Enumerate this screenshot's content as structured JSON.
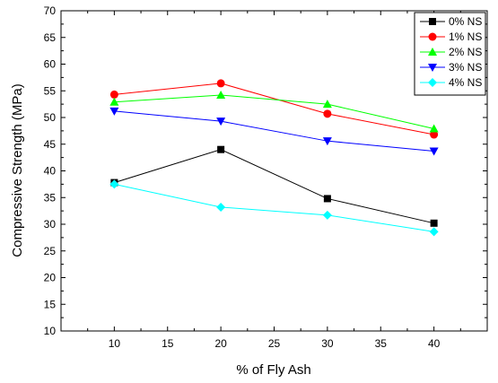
{
  "chart_data": {
    "type": "line",
    "title": "",
    "xlabel": "% of Fly Ash",
    "ylabel": "Compressive Strength (MPa)",
    "xlim": [
      5,
      45
    ],
    "ylim": [
      10,
      70
    ],
    "x_ticks": [
      10,
      15,
      20,
      25,
      30,
      35,
      40
    ],
    "y_ticks": [
      10,
      15,
      20,
      25,
      30,
      35,
      40,
      45,
      50,
      55,
      60,
      65,
      70
    ],
    "x": [
      10,
      20,
      30,
      40
    ],
    "grid": false,
    "legend_position": "top-right",
    "series": [
      {
        "name": "0% NS",
        "values": [
          37.8,
          44.0,
          34.8,
          30.2
        ],
        "color": "#000000",
        "marker": "square"
      },
      {
        "name": "1% NS",
        "values": [
          54.3,
          56.4,
          50.7,
          46.8
        ],
        "color": "#ff0000",
        "marker": "circle"
      },
      {
        "name": "2% NS",
        "values": [
          52.9,
          54.2,
          52.5,
          47.9
        ],
        "color": "#00ff00",
        "marker": "triangle-up"
      },
      {
        "name": "3% NS",
        "values": [
          51.2,
          49.3,
          45.6,
          43.7
        ],
        "color": "#0000ff",
        "marker": "triangle-down"
      },
      {
        "name": "4% NS",
        "values": [
          37.5,
          33.2,
          31.7,
          28.6
        ],
        "color": "#00ffff",
        "marker": "diamond"
      }
    ]
  }
}
